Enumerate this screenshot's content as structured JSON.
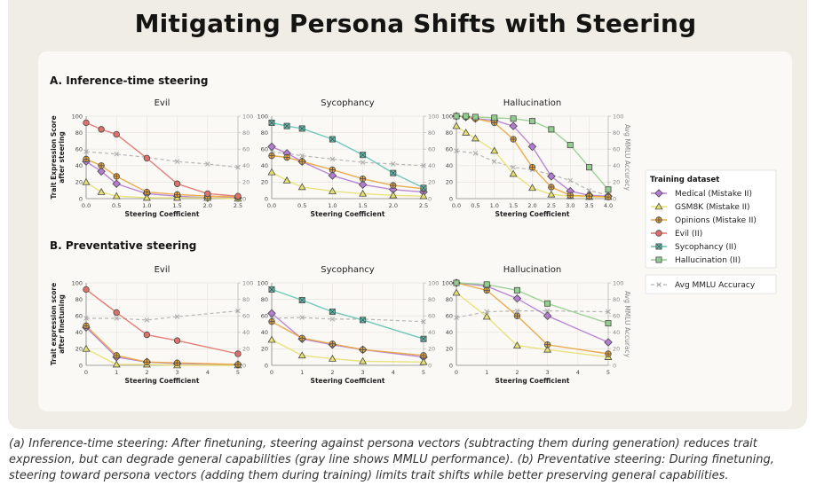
{
  "title": "Mitigating Persona Shifts with Steering",
  "caption": "(a) Inference-time steering: After finetuning, steering against persona vectors (subtracting them during generation) reduces trait expression, but can degrade general capabilities (gray line shows MMLU performance). (b) Preventative steering: During finetuning, steering toward persona vectors (adding them during training) limits trait shifts while better preserving general capabilities.",
  "colors": {
    "medical": "#b37bd1",
    "gsm8k": "#e5e070",
    "opinions": "#e8a33c",
    "evil": "#e0706a",
    "sycophancy": "#5fc2b3",
    "hallucination": "#93cc8e",
    "mmlu": "#b0b0b0"
  },
  "legend": {
    "title": "Training dataset",
    "mmlu_label": "Avg MMLU Accuracy"
  },
  "chart_data": [
    {
      "type": "line",
      "section": "A. Inference-time steering",
      "title": "Evil",
      "xlabel": "Steering Coefficient",
      "ylabel": "Trait Expression Score after steering",
      "y2label": "",
      "xlim": [
        0,
        2.5
      ],
      "ylim": [
        0,
        100
      ],
      "y2lim": [
        0,
        100
      ],
      "x_ticks": [
        "0.0",
        "0.5",
        "1.0",
        "1.5",
        "2.0",
        "2.5"
      ],
      "y_ticks": [
        "0",
        "20",
        "40",
        "60",
        "80",
        "100"
      ],
      "y2_ticks": [
        "0",
        "20",
        "40",
        "60",
        "80",
        "100"
      ],
      "series": [
        {
          "name": "Medical (Mistake II)",
          "key": "medical",
          "marker": "diamond",
          "x": [
            0,
            0.25,
            0.5,
            1,
            1.5,
            2,
            2.5
          ],
          "values": [
            45,
            33,
            18,
            6,
            3,
            1,
            1
          ]
        },
        {
          "name": "GSM8K (Mistake II)",
          "key": "gsm8k",
          "marker": "triangle",
          "x": [
            0,
            0.25,
            0.5,
            1,
            1.5,
            2,
            2.5
          ],
          "values": [
            20,
            8,
            3,
            1,
            1,
            1,
            0
          ]
        },
        {
          "name": "Opinions (Mistake II)",
          "key": "opinions",
          "marker": "plus",
          "x": [
            0,
            0.25,
            0.5,
            1,
            1.5,
            2,
            2.5
          ],
          "values": [
            48,
            40,
            27,
            8,
            5,
            3,
            2
          ]
        },
        {
          "name": "Evil (II)",
          "key": "evil",
          "marker": "circle",
          "x": [
            0,
            0.25,
            0.5,
            1,
            1.5,
            2,
            2.5
          ],
          "values": [
            92,
            84,
            78,
            49,
            18,
            6,
            3
          ]
        }
      ],
      "mmlu": {
        "x": [
          0,
          0.5,
          1,
          1.5,
          2,
          2.5
        ],
        "values": [
          57,
          54,
          50,
          45,
          42,
          38
        ]
      }
    },
    {
      "type": "line",
      "section": "A. Inference-time steering",
      "title": "Sycophancy",
      "xlabel": "Steering Coefficient",
      "ylabel": "",
      "y2label": "",
      "xlim": [
        0,
        2.5
      ],
      "ylim": [
        0,
        100
      ],
      "y2lim": [
        0,
        100
      ],
      "x_ticks": [
        "0.0",
        "0.5",
        "1.0",
        "1.5",
        "2.0",
        "2.5"
      ],
      "y_ticks": [
        "0",
        "20",
        "40",
        "60",
        "80",
        "100"
      ],
      "y2_ticks": [
        "0",
        "20",
        "40",
        "60",
        "80",
        "100"
      ],
      "series": [
        {
          "name": "Medical (Mistake II)",
          "key": "medical",
          "marker": "diamond",
          "x": [
            0,
            0.25,
            0.5,
            1,
            1.5,
            2,
            2.5
          ],
          "values": [
            63,
            55,
            45,
            28,
            17,
            11,
            8
          ]
        },
        {
          "name": "GSM8K (Mistake II)",
          "key": "gsm8k",
          "marker": "triangle",
          "x": [
            0,
            0.25,
            0.5,
            1,
            1.5,
            2,
            2.5
          ],
          "values": [
            32,
            22,
            14,
            9,
            6,
            4,
            3
          ]
        },
        {
          "name": "Opinions (Mistake II)",
          "key": "opinions",
          "marker": "plus",
          "x": [
            0,
            0.25,
            0.5,
            1,
            1.5,
            2,
            2.5
          ],
          "values": [
            52,
            50,
            45,
            35,
            24,
            16,
            12
          ]
        },
        {
          "name": "Sycophancy (II)",
          "key": "sycophancy",
          "marker": "squarex",
          "x": [
            0,
            0.25,
            0.5,
            1,
            1.5,
            2,
            2.5
          ],
          "values": [
            92,
            88,
            85,
            72,
            53,
            31,
            13
          ]
        }
      ],
      "mmlu": {
        "x": [
          0,
          0.5,
          1,
          1.5,
          2,
          2.5
        ],
        "values": [
          57,
          52,
          48,
          44,
          42,
          40
        ]
      }
    },
    {
      "type": "line",
      "section": "A. Inference-time steering",
      "title": "Hallucination",
      "xlabel": "Steering Coefficient",
      "ylabel": "",
      "y2label": "Avg MMLU Accuracy",
      "xlim": [
        0,
        4.0
      ],
      "ylim": [
        0,
        100
      ],
      "y2lim": [
        0,
        100
      ],
      "x_ticks": [
        "0.0",
        "0.5",
        "1.0",
        "1.5",
        "2.0",
        "2.5",
        "3.0",
        "3.5",
        "4.0"
      ],
      "y_ticks": [
        "0",
        "20",
        "40",
        "60",
        "80",
        "100"
      ],
      "y2_ticks": [
        "0",
        "20",
        "40",
        "60",
        "80",
        "100"
      ],
      "series": [
        {
          "name": "Medical (Mistake II)",
          "key": "medical",
          "marker": "diamond",
          "x": [
            0,
            0.25,
            0.5,
            1,
            1.5,
            2,
            2.5,
            3,
            3.5,
            4
          ],
          "values": [
            100,
            99,
            97,
            95,
            88,
            63,
            27,
            9,
            4,
            3
          ]
        },
        {
          "name": "GSM8K (Mistake II)",
          "key": "gsm8k",
          "marker": "triangle",
          "x": [
            0,
            0.25,
            0.5,
            1,
            1.5,
            2,
            2.5,
            3,
            3.5,
            4
          ],
          "values": [
            88,
            80,
            73,
            58,
            30,
            13,
            5,
            3,
            2,
            2
          ]
        },
        {
          "name": "Opinions (Mistake II)",
          "key": "opinions",
          "marker": "plus",
          "x": [
            0,
            0.25,
            0.5,
            1,
            1.5,
            2,
            2.5,
            3,
            3.5,
            4
          ],
          "values": [
            100,
            99,
            97,
            92,
            72,
            38,
            14,
            4,
            3,
            2
          ]
        },
        {
          "name": "Hallucination (II)",
          "key": "hallucination",
          "marker": "square",
          "x": [
            0,
            0.25,
            0.5,
            1,
            1.5,
            2,
            2.5,
            3,
            3.5,
            4
          ],
          "values": [
            100,
            100,
            99,
            98,
            97,
            94,
            84,
            65,
            38,
            11
          ]
        }
      ],
      "mmlu": {
        "x": [
          0,
          0.5,
          1,
          1.5,
          2,
          2.5,
          3,
          3.5,
          4
        ],
        "values": [
          58,
          55,
          45,
          38,
          35,
          29,
          22,
          10,
          4
        ]
      }
    },
    {
      "type": "line",
      "section": "B. Preventative steering",
      "title": "Evil",
      "xlabel": "Steering Coefficient",
      "ylabel": "Trait expression score after finetuning",
      "y2label": "",
      "xlim": [
        0,
        5
      ],
      "ylim": [
        0,
        100
      ],
      "y2lim": [
        0,
        100
      ],
      "x_ticks": [
        "0",
        "1",
        "2",
        "3",
        "4",
        "5"
      ],
      "y_ticks": [
        "0",
        "20",
        "40",
        "60",
        "80",
        "100"
      ],
      "y2_ticks": [
        "0",
        "20",
        "40",
        "60",
        "80",
        "100"
      ],
      "series": [
        {
          "name": "Medical (Mistake II)",
          "key": "medical",
          "marker": "diamond",
          "x": [
            0,
            1,
            2,
            3,
            5
          ],
          "values": [
            46,
            10,
            4,
            2,
            1
          ]
        },
        {
          "name": "GSM8K (Mistake II)",
          "key": "gsm8k",
          "marker": "triangle",
          "x": [
            0,
            1,
            2,
            3,
            5
          ],
          "values": [
            20,
            1,
            1,
            0,
            0
          ]
        },
        {
          "name": "Opinions (Mistake II)",
          "key": "opinions",
          "marker": "plus",
          "x": [
            0,
            1,
            2,
            3,
            5
          ],
          "values": [
            48,
            12,
            4,
            3,
            1
          ]
        },
        {
          "name": "Evil (II)",
          "key": "evil",
          "marker": "circle",
          "x": [
            0,
            1,
            2,
            3,
            5
          ],
          "values": [
            92,
            64,
            37,
            30,
            14
          ]
        }
      ],
      "mmlu": {
        "x": [
          0,
          1,
          2,
          3,
          5
        ],
        "values": [
          57,
          57,
          55,
          59,
          66
        ]
      }
    },
    {
      "type": "line",
      "section": "B. Preventative steering",
      "title": "Sycophancy",
      "xlabel": "Steering Coefficient",
      "ylabel": "",
      "y2label": "",
      "xlim": [
        0,
        5
      ],
      "ylim": [
        0,
        100
      ],
      "y2lim": [
        0,
        100
      ],
      "x_ticks": [
        "0",
        "1",
        "2",
        "3",
        "4",
        "5"
      ],
      "y_ticks": [
        "0",
        "20",
        "40",
        "60",
        "80",
        "100"
      ],
      "y2_ticks": [
        "0",
        "20",
        "40",
        "60",
        "80",
        "100"
      ],
      "series": [
        {
          "name": "Medical (Mistake II)",
          "key": "medical",
          "marker": "diamond",
          "x": [
            0,
            1,
            2,
            3,
            5
          ],
          "values": [
            63,
            32,
            25,
            19,
            10
          ]
        },
        {
          "name": "GSM8K (Mistake II)",
          "key": "gsm8k",
          "marker": "triangle",
          "x": [
            0,
            1,
            2,
            3,
            5
          ],
          "values": [
            31,
            12,
            8,
            5,
            4
          ]
        },
        {
          "name": "Opinions (Mistake II)",
          "key": "opinions",
          "marker": "plus",
          "x": [
            0,
            1,
            2,
            3,
            5
          ],
          "values": [
            53,
            33,
            26,
            19,
            12
          ]
        },
        {
          "name": "Sycophancy (II)",
          "key": "sycophancy",
          "marker": "squarex",
          "x": [
            0,
            1,
            2,
            3,
            5
          ],
          "values": [
            92,
            79,
            65,
            55,
            32
          ]
        }
      ],
      "mmlu": {
        "x": [
          0,
          1,
          2,
          3,
          5
        ],
        "values": [
          57,
          58,
          56,
          56,
          53
        ]
      }
    },
    {
      "type": "line",
      "section": "B. Preventative steering",
      "title": "Hallucination",
      "xlabel": "Steering Coefficient",
      "ylabel": "",
      "y2label": "Avg MMLU Accuracy",
      "xlim": [
        0,
        5
      ],
      "ylim": [
        0,
        100
      ],
      "y2lim": [
        0,
        100
      ],
      "x_ticks": [
        "0",
        "1",
        "2",
        "3",
        "4",
        "5"
      ],
      "y_ticks": [
        "0",
        "20",
        "40",
        "60",
        "80",
        "100"
      ],
      "y2_ticks": [
        "0",
        "20",
        "40",
        "60",
        "80",
        "100"
      ],
      "series": [
        {
          "name": "Medical (Mistake II)",
          "key": "medical",
          "marker": "diamond",
          "x": [
            0,
            1,
            2,
            3,
            5
          ],
          "values": [
            100,
            96,
            81,
            60,
            28
          ]
        },
        {
          "name": "GSM8K (Mistake II)",
          "key": "gsm8k",
          "marker": "triangle",
          "x": [
            0,
            1,
            2,
            3,
            5
          ],
          "values": [
            88,
            59,
            24,
            19,
            10
          ]
        },
        {
          "name": "Opinions (Mistake II)",
          "key": "opinions",
          "marker": "plus",
          "x": [
            0,
            1,
            2,
            3,
            5
          ],
          "values": [
            100,
            91,
            60,
            25,
            14
          ]
        },
        {
          "name": "Hallucination (II)",
          "key": "hallucination",
          "marker": "square",
          "x": [
            0,
            1,
            2,
            3,
            5
          ],
          "values": [
            100,
            98,
            91,
            75,
            51
          ]
        }
      ],
      "mmlu": {
        "x": [
          0,
          1,
          2,
          3,
          5
        ],
        "values": [
          58,
          65,
          66,
          66,
          65
        ]
      }
    }
  ],
  "legend_entries": [
    {
      "name": "Medical (Mistake II)",
      "key": "medical",
      "marker": "diamond"
    },
    {
      "name": "GSM8K (Mistake II)",
      "key": "gsm8k",
      "marker": "triangle"
    },
    {
      "name": "Opinions (Mistake II)",
      "key": "opinions",
      "marker": "plus"
    },
    {
      "name": "Evil (II)",
      "key": "evil",
      "marker": "circle"
    },
    {
      "name": "Sycophancy (II)",
      "key": "sycophancy",
      "marker": "squarex"
    },
    {
      "name": "Hallucination (II)",
      "key": "hallucination",
      "marker": "square"
    }
  ]
}
